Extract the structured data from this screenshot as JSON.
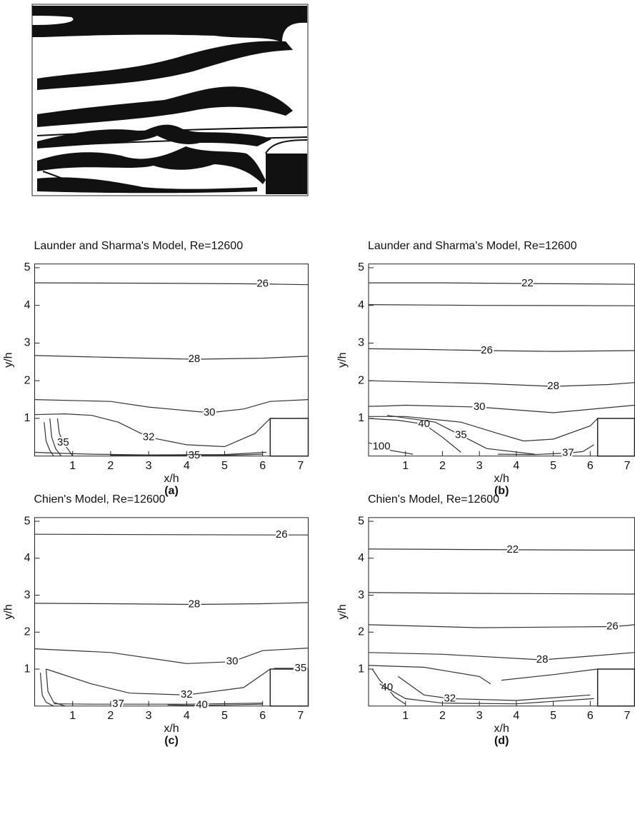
{
  "chart_data": [
    {
      "type": "contour",
      "title": "Launder and Sharma's Model, Re=12600",
      "xlabel": "x/h",
      "ylabel": "y/h",
      "caption": "(a)",
      "xlim": [
        0,
        7.2
      ],
      "ylim": [
        0,
        5.1
      ],
      "xticks": [
        1,
        2,
        3,
        4,
        5,
        6,
        7
      ],
      "yticks": [
        1,
        2,
        3,
        4,
        5
      ],
      "step": [
        6.2,
        1
      ],
      "contours": [
        {
          "level": 26,
          "x": [
            0,
            3,
            6,
            6.6,
            7.2
          ],
          "y": [
            4.6,
            4.59,
            4.57,
            4.56,
            4.55
          ]
        },
        {
          "level": 28,
          "x": [
            0,
            2,
            4.2,
            6,
            7.2
          ],
          "y": [
            2.67,
            2.62,
            2.57,
            2.6,
            2.65
          ]
        },
        {
          "level": 30,
          "x": [
            0,
            2,
            3,
            4.6,
            5.5,
            6.2,
            7.2
          ],
          "y": [
            1.5,
            1.45,
            1.3,
            1.15,
            1.25,
            1.45,
            1.5
          ]
        },
        {
          "level": 32,
          "x": [
            0,
            0.8,
            1.5,
            2.2,
            3,
            4,
            5,
            5.8,
            6.2
          ],
          "y": [
            1.1,
            1.12,
            1.08,
            0.9,
            0.5,
            0.3,
            0.25,
            0.6,
            1.0
          ]
        },
        {
          "level": 35,
          "x": [
            0.6,
            0.65,
            0.75,
            0.9,
            1.0
          ],
          "y": [
            1.0,
            0.6,
            0.35,
            0.15,
            0
          ]
        },
        {
          "level": 35,
          "x": [
            2,
            3,
            4.2,
            5,
            6
          ],
          "y": [
            0.02,
            0.02,
            0.01,
            0.02,
            0.05
          ]
        },
        {
          "x": [
            0.4,
            0.45,
            0.55,
            0.7
          ],
          "y": [
            1.0,
            0.5,
            0.2,
            0
          ]
        },
        {
          "x": [
            0.25,
            0.3,
            0.4,
            0.5
          ],
          "y": [
            0.9,
            0.4,
            0.15,
            0
          ]
        },
        {
          "x": [
            0,
            0.5,
            1.5,
            3,
            5,
            6.1
          ],
          "y": [
            0.1,
            0.08,
            0.05,
            0.03,
            0.04,
            0.1
          ]
        }
      ]
    },
    {
      "type": "contour",
      "title": "Launder and Sharma's Model, Re=12600",
      "xlabel": "x/h",
      "ylabel": "y/h",
      "caption": "(b)",
      "xlim": [
        0,
        7.2
      ],
      "ylim": [
        0,
        5.1
      ],
      "xticks": [
        1,
        2,
        3,
        4,
        5,
        6,
        7
      ],
      "yticks": [
        1,
        2,
        3,
        4,
        5
      ],
      "step": [
        6.2,
        1
      ],
      "contours": [
        {
          "level": 22,
          "x": [
            0,
            2,
            4.3,
            6,
            7.2
          ],
          "y": [
            4.6,
            4.6,
            4.58,
            4.57,
            4.56
          ]
        },
        {
          "x": [
            0,
            3,
            7.2
          ],
          "y": [
            4.02,
            4.0,
            3.99
          ]
        },
        {
          "level": 26,
          "x": [
            0,
            1.5,
            3.2,
            5,
            7.2
          ],
          "y": [
            2.85,
            2.83,
            2.8,
            2.78,
            2.8
          ]
        },
        {
          "level": 28,
          "x": [
            0,
            3,
            5,
            6.5,
            7.2
          ],
          "y": [
            2.0,
            1.93,
            1.85,
            1.9,
            1.95
          ]
        },
        {
          "level": 30,
          "x": [
            0,
            0.5,
            1.0,
            3,
            5,
            7.2
          ],
          "y": [
            1.32,
            1.33,
            1.35,
            1.3,
            1.15,
            1.35
          ]
        },
        {
          "level": 40,
          "x": [
            0,
            0.8,
            1.5,
            2,
            2.5
          ],
          "y": [
            1.0,
            0.95,
            0.85,
            0.5,
            0.1
          ]
        },
        {
          "level": 35,
          "x": [
            0.5,
            1.8,
            2.5,
            3.2,
            4.5
          ],
          "y": [
            1.08,
            0.9,
            0.55,
            0.2,
            0.05
          ]
        },
        {
          "level": 100,
          "x": [
            0,
            0.2,
            0.35,
            0.6,
            1.2
          ],
          "y": [
            0.35,
            0.3,
            0.25,
            0.15,
            0.05
          ]
        },
        {
          "level": 37,
          "x": [
            3.5,
            4.5,
            5.4,
            5.8,
            6.1
          ],
          "y": [
            0.05,
            0.04,
            0.08,
            0.12,
            0.3
          ]
        },
        {
          "x": [
            0,
            1,
            2.5,
            3.5,
            4.2,
            5,
            6,
            6.2
          ],
          "y": [
            1.05,
            1.05,
            0.9,
            0.6,
            0.4,
            0.45,
            0.8,
            1.0
          ]
        }
      ]
    },
    {
      "type": "contour",
      "title": "Chien's Model, Re=12600",
      "xlabel": "x/h",
      "ylabel": "y/h",
      "caption": "(c)",
      "xlim": [
        0,
        7.2
      ],
      "ylim": [
        0,
        5.1
      ],
      "xticks": [
        1,
        2,
        3,
        4,
        5,
        6,
        7
      ],
      "yticks": [
        1,
        2,
        3,
        4,
        5
      ],
      "step": [
        6.2,
        1
      ],
      "contours": [
        {
          "level": 26,
          "x": [
            0,
            3,
            6.5,
            6.9,
            7.2
          ],
          "y": [
            4.65,
            4.64,
            4.63,
            4.63,
            4.63
          ]
        },
        {
          "level": 28,
          "x": [
            0,
            2,
            4.2,
            6,
            7.2
          ],
          "y": [
            2.78,
            2.77,
            2.75,
            2.77,
            2.8
          ]
        },
        {
          "level": 30,
          "x": [
            0,
            2,
            4,
            5.2,
            6,
            7.2
          ],
          "y": [
            1.55,
            1.45,
            1.15,
            1.2,
            1.5,
            1.57
          ]
        },
        {
          "level": 32,
          "x": [
            0.3,
            1.5,
            2.5,
            4,
            5.5,
            6.2
          ],
          "y": [
            1.0,
            0.6,
            0.35,
            0.3,
            0.5,
            1.0
          ]
        },
        {
          "level": 35,
          "x": [
            6.3,
            6.7,
            7.0,
            7.1,
            7.2
          ],
          "y": [
            1.02,
            1.02,
            1.02,
            1.02,
            1.02
          ]
        },
        {
          "level": 37,
          "x": [
            0.5,
            1.5,
            2.2,
            4,
            6
          ],
          "y": [
            0.06,
            0.05,
            0.05,
            0.05,
            0.08
          ]
        },
        {
          "level": 40,
          "x": [
            3.5,
            4.0,
            4.4,
            5,
            6
          ],
          "y": [
            0.03,
            0.02,
            0.02,
            0.03,
            0.05
          ]
        },
        {
          "x": [
            0.3,
            0.35,
            0.5,
            0.8
          ],
          "y": [
            1.0,
            0.4,
            0.1,
            0
          ]
        },
        {
          "x": [
            0.15,
            0.2,
            0.3,
            0.5
          ],
          "y": [
            0.9,
            0.3,
            0.1,
            0
          ]
        }
      ]
    },
    {
      "type": "contour",
      "title": "Chien's Model, Re=12600",
      "xlabel": "x/h",
      "ylabel": "y/h",
      "caption": "(d)",
      "xlim": [
        0,
        7.2
      ],
      "ylim": [
        0,
        5.1
      ],
      "xticks": [
        1,
        2,
        3,
        4,
        5,
        6,
        7
      ],
      "yticks": [
        1,
        2,
        3,
        4,
        5
      ],
      "step": [
        6.2,
        1
      ],
      "contours": [
        {
          "level": 22,
          "x": [
            0,
            2,
            3.9,
            6,
            7.2
          ],
          "y": [
            4.25,
            4.24,
            4.23,
            4.22,
            4.22
          ]
        },
        {
          "x": [
            0,
            3,
            7.2
          ],
          "y": [
            3.07,
            3.05,
            3.03
          ]
        },
        {
          "level": 26,
          "x": [
            0,
            3,
            6.6,
            7,
            7.2
          ],
          "y": [
            2.2,
            2.12,
            2.15,
            2.18,
            2.2
          ]
        },
        {
          "level": 28,
          "x": [
            0,
            2,
            4.7,
            6,
            7.2
          ],
          "y": [
            1.45,
            1.4,
            1.25,
            1.35,
            1.45
          ]
        },
        {
          "level": 40,
          "x": [
            0.1,
            0.3,
            0.5,
            0.7,
            1.0
          ],
          "y": [
            1.0,
            0.7,
            0.5,
            0.25,
            0.05
          ]
        },
        {
          "level": 32,
          "x": [
            0.8,
            1.5,
            2.2,
            4,
            6
          ],
          "y": [
            0.8,
            0.3,
            0.2,
            0.15,
            0.3
          ]
        },
        {
          "x": [
            0,
            1.5,
            3,
            3.3
          ],
          "y": [
            1.1,
            1.05,
            0.8,
            0.6
          ]
        },
        {
          "x": [
            3.6,
            5,
            6.2
          ],
          "y": [
            0.7,
            0.85,
            1.0
          ]
        },
        {
          "x": [
            0.3,
            1,
            2,
            4,
            6.1
          ],
          "y": [
            0.6,
            0.2,
            0.08,
            0.06,
            0.2
          ]
        }
      ]
    }
  ]
}
